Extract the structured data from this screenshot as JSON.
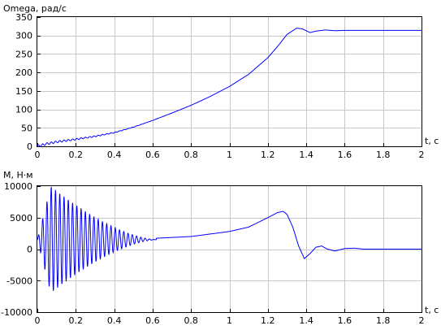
{
  "chart_data": [
    {
      "type": "line",
      "ylabel": "Omega, рад/с",
      "xlabel": "t, c",
      "xlim": [
        0,
        2
      ],
      "ylim": [
        0,
        350
      ],
      "x_ticks": [
        "0",
        "0.2",
        "0.4",
        "0.6",
        "0.8",
        "1",
        "1.2",
        "1.4",
        "1.6",
        "1.8",
        "2"
      ],
      "y_ticks": [
        "0",
        "50",
        "100",
        "150",
        "200",
        "250",
        "300",
        "350"
      ],
      "grid": true,
      "line_color": "#0000ff",
      "series": [
        {
          "x": [
            0,
            0.05,
            0.1,
            0.2,
            0.3,
            0.4,
            0.5,
            0.6,
            0.7,
            0.8,
            0.9,
            1.0,
            1.1,
            1.2,
            1.25,
            1.3,
            1.35,
            1.38,
            1.42,
            1.45,
            1.5,
            1.55,
            1.6,
            1.8,
            2.0
          ],
          "y": [
            0,
            7,
            12,
            19,
            27,
            37,
            52,
            70,
            90,
            111,
            135,
            162,
            195,
            240,
            270,
            303,
            320,
            318,
            308,
            312,
            315,
            313,
            314,
            314,
            314
          ],
          "oscillation": {
            "until": 0.6,
            "amplitude": 3,
            "frequency": 45
          }
        }
      ]
    },
    {
      "type": "line",
      "ylabel": "M,  Н·м",
      "xlabel": "t, c",
      "xlim": [
        0,
        2
      ],
      "ylim": [
        -10000,
        10000
      ],
      "x_ticks": [
        "0",
        "0.2",
        "0.4",
        "0.6",
        "0.8",
        "1",
        "1.2",
        "1.4",
        "1.6",
        "1.8",
        "2"
      ],
      "y_ticks": [
        "-10000",
        "-5000",
        "0",
        "5000",
        "10000"
      ],
      "grid": true,
      "line_color": "#0000ff",
      "series": [
        {
          "x": [
            0,
            0.6,
            0.8,
            1.0,
            1.1,
            1.2,
            1.25,
            1.28,
            1.3,
            1.33,
            1.36,
            1.39,
            1.42,
            1.45,
            1.48,
            1.51,
            1.55,
            1.6,
            1.65,
            1.7,
            1.8,
            2.0
          ],
          "y": [
            1500,
            1700,
            2000,
            2800,
            3500,
            5000,
            5800,
            6000,
            5500,
            3500,
            500,
            -1500,
            -700,
            300,
            500,
            0,
            -300,
            100,
            150,
            0,
            0,
            0
          ],
          "oscillation": {
            "center": 1500,
            "peak_time": 0.07,
            "peak_amplitude": 8500,
            "end_time": 0.62,
            "frequency": 45
          }
        }
      ]
    }
  ]
}
